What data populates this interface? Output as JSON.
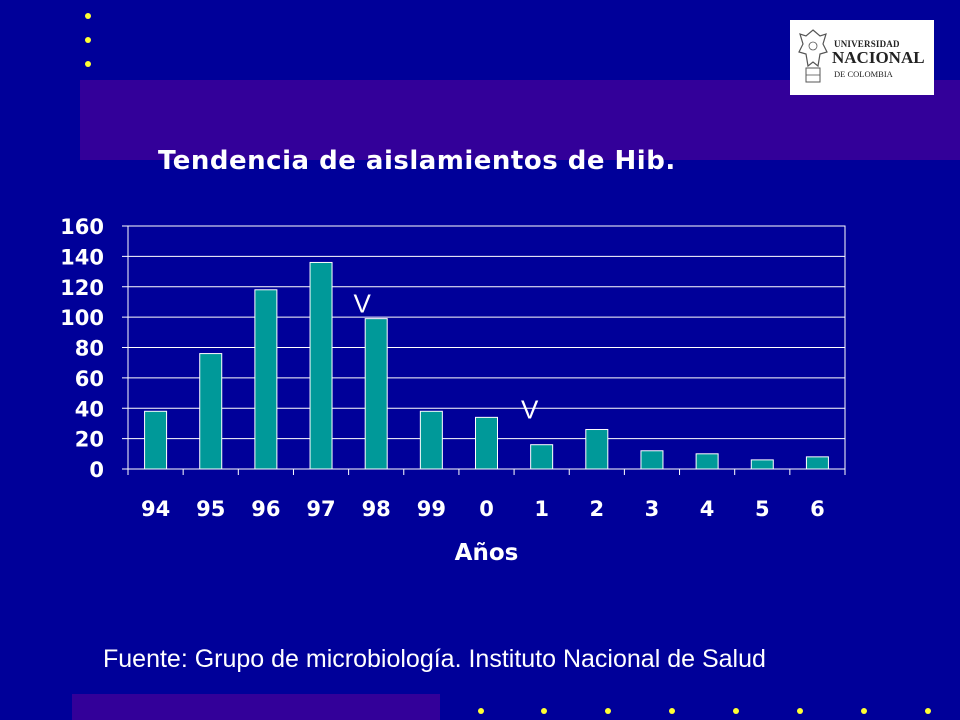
{
  "logo": {
    "line1": "UNIVERSIDAD",
    "line2": "NACIONAL",
    "line3": "DE COLOMBIA"
  },
  "footer": {
    "source": "Fuente: Grupo de microbiología. Instituto Nacional de Salud"
  },
  "colors": {
    "background": "#000099",
    "band": "#330099",
    "bar": "#009999",
    "dots": "#ffff33",
    "text": "#ffffff"
  },
  "chart_data": {
    "type": "bar",
    "title": "Tendencia de aislamientos de Hib.",
    "xlabel": "Años",
    "ylabel": "",
    "categories": [
      "94",
      "95",
      "96",
      "97",
      "98",
      "99",
      "0",
      "1",
      "2",
      "3",
      "4",
      "5",
      "6"
    ],
    "values": [
      38,
      76,
      118,
      136,
      99,
      38,
      34,
      16,
      26,
      12,
      10,
      6,
      8
    ],
    "ylim": [
      0,
      160
    ],
    "yticks": [
      0,
      20,
      40,
      60,
      80,
      100,
      120,
      140,
      160
    ],
    "grid": true,
    "annotations": [
      {
        "text": "V",
        "category": "98"
      },
      {
        "text": "V",
        "category": "1"
      }
    ]
  }
}
